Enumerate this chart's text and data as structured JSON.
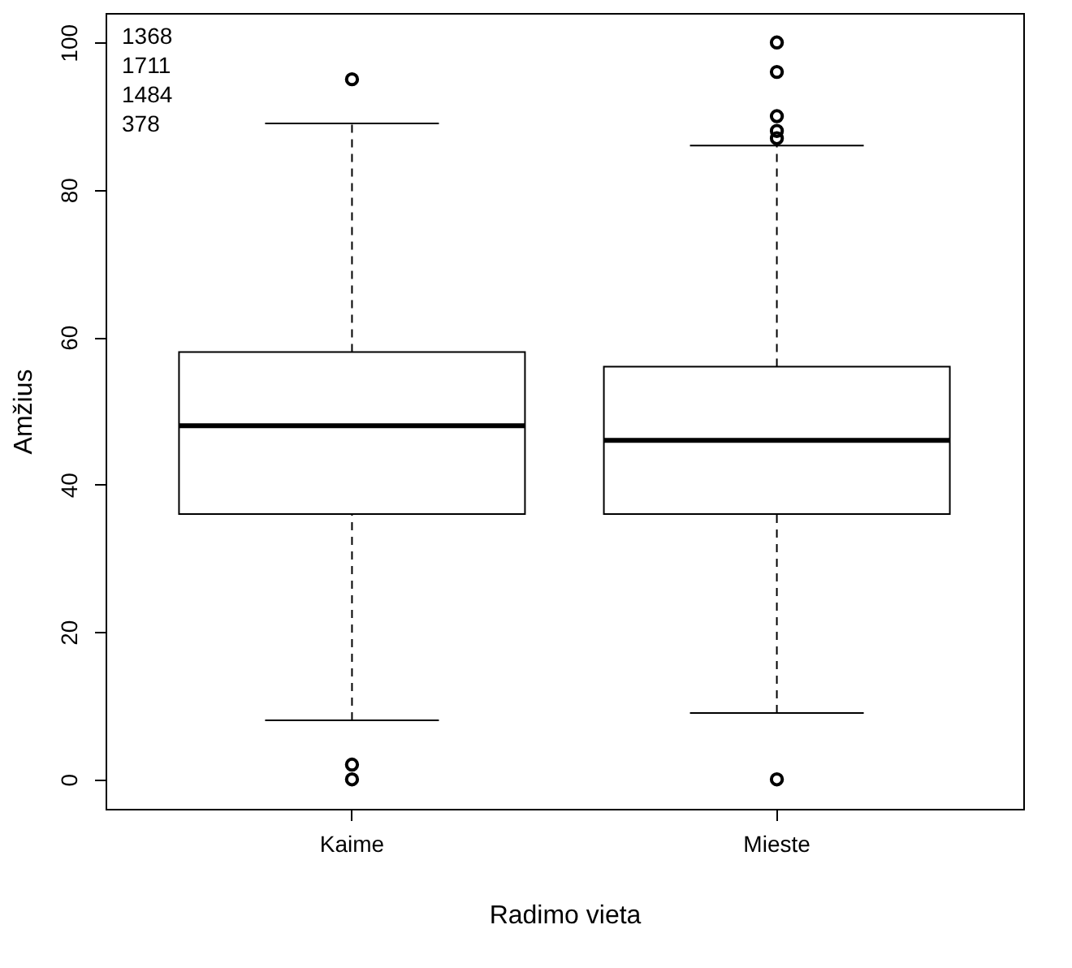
{
  "chart_data": {
    "type": "box",
    "xlabel": "Radimo vieta",
    "ylabel": "Amžius",
    "categories": [
      "Kaime",
      "Mieste"
    ],
    "boxes": [
      {
        "low": 8,
        "q1": 36,
        "median": 48,
        "q3": 58,
        "high": 89,
        "outliers": [
          95,
          2,
          0
        ]
      },
      {
        "low": 9,
        "q1": 36,
        "median": 46,
        "q3": 56,
        "high": 86,
        "outliers": [
          100,
          96,
          90,
          88,
          87,
          0
        ]
      }
    ],
    "ylim": [
      -4,
      104
    ],
    "yticks": [
      0,
      20,
      40,
      60,
      80,
      100
    ],
    "annotations": [
      "1368",
      "1711",
      "1484",
      "378"
    ]
  }
}
